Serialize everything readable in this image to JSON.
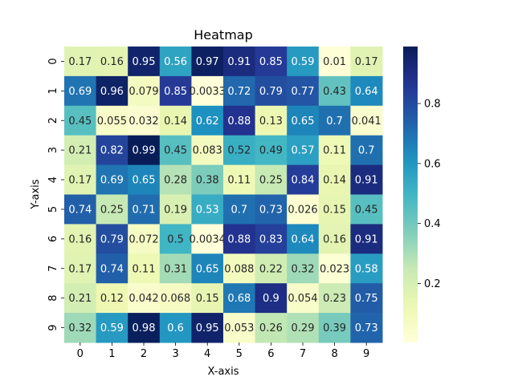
{
  "chart_data": {
    "type": "heatmap",
    "title": "Heatmap",
    "xlabel": "X-axis",
    "ylabel": "Y-axis",
    "x_categories": [
      "0",
      "1",
      "2",
      "3",
      "4",
      "5",
      "6",
      "7",
      "8",
      "9"
    ],
    "y_categories": [
      "0",
      "1",
      "2",
      "3",
      "4",
      "5",
      "6",
      "7",
      "8",
      "9"
    ],
    "values": [
      [
        0.17,
        0.16,
        0.95,
        0.56,
        0.97,
        0.91,
        0.85,
        0.59,
        0.01,
        0.17
      ],
      [
        0.69,
        0.96,
        0.079,
        0.85,
        0.0033,
        0.72,
        0.79,
        0.77,
        0.43,
        0.64
      ],
      [
        0.45,
        0.055,
        0.032,
        0.14,
        0.62,
        0.88,
        0.13,
        0.65,
        0.7,
        0.041
      ],
      [
        0.21,
        0.82,
        0.99,
        0.45,
        0.083,
        0.52,
        0.49,
        0.57,
        0.11,
        0.7
      ],
      [
        0.17,
        0.69,
        0.65,
        0.28,
        0.38,
        0.11,
        0.25,
        0.84,
        0.14,
        0.91
      ],
      [
        0.74,
        0.25,
        0.71,
        0.19,
        0.53,
        0.7,
        0.73,
        0.026,
        0.15,
        0.45
      ],
      [
        0.16,
        0.79,
        0.072,
        0.5,
        0.0034,
        0.88,
        0.83,
        0.64,
        0.16,
        0.91
      ],
      [
        0.17,
        0.74,
        0.11,
        0.31,
        0.65,
        0.088,
        0.22,
        0.32,
        0.023,
        0.58
      ],
      [
        0.21,
        0.12,
        0.042,
        0.068,
        0.15,
        0.68,
        0.9,
        0.054,
        0.23,
        0.75
      ],
      [
        0.32,
        0.59,
        0.98,
        0.6,
        0.95,
        0.053,
        0.26,
        0.29,
        0.39,
        0.73
      ]
    ],
    "colormap": "YlGnBu",
    "colorbar": {
      "ticks": [
        "0.2",
        "0.4",
        "0.6",
        "0.8"
      ],
      "range": [
        0.0033,
        0.99
      ]
    },
    "grid": false
  }
}
